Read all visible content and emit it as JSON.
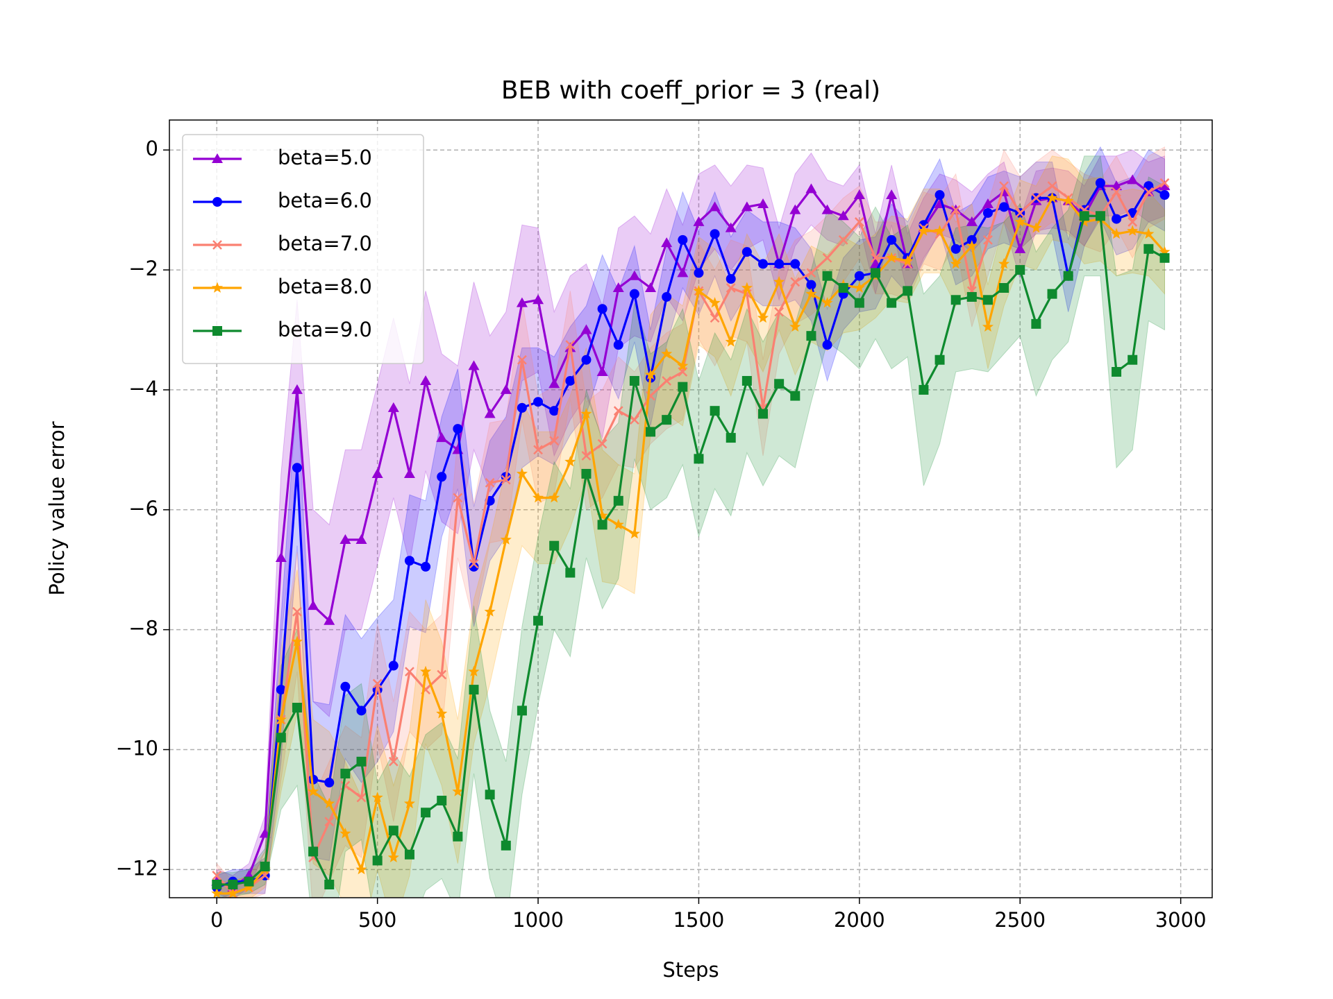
{
  "chart_data": {
    "type": "line",
    "title": "BEB with coeff_prior = 3 (real)",
    "x_label": "Steps",
    "y_label": "Policy value error",
    "x": [
      0,
      50,
      100,
      150,
      200,
      250,
      300,
      350,
      400,
      450,
      500,
      550,
      600,
      650,
      700,
      750,
      800,
      850,
      900,
      950,
      1000,
      1050,
      1100,
      1150,
      1200,
      1250,
      1300,
      1350,
      1400,
      1450,
      1500,
      1550,
      1600,
      1650,
      1700,
      1750,
      1800,
      1850,
      1900,
      1950,
      2000,
      2050,
      2100,
      2150,
      2200,
      2250,
      2300,
      2350,
      2400,
      2450,
      2500,
      2550,
      2600,
      2650,
      2700,
      2750,
      2800,
      2850,
      2900,
      2950
    ],
    "xlim": [
      -147.5,
      3098
    ],
    "ylim": [
      -12.47,
      0.5
    ],
    "xticks": [
      0,
      500,
      1000,
      1500,
      2000,
      2500,
      3000
    ],
    "yticks": [
      {
        "value": -12,
        "label": "−12"
      },
      {
        "value": -10,
        "label": "−10"
      },
      {
        "value": -8,
        "label": "−8"
      },
      {
        "value": -6,
        "label": "−6"
      },
      {
        "value": -4,
        "label": "−4"
      },
      {
        "value": -2,
        "label": "−2"
      },
      0
    ],
    "grid": true,
    "legend": "upper left",
    "series": [
      {
        "name": "beta=5.0",
        "color": "#9400d3",
        "marker": "triangle",
        "values": [
          -12.2,
          -12.3,
          -12.1,
          -11.4,
          -6.8,
          -4.0,
          -7.6,
          -7.85,
          -6.5,
          -6.5,
          -5.4,
          -4.3,
          -5.4,
          -3.85,
          -4.8,
          -5.0,
          -3.6,
          -4.4,
          -4.0,
          -2.55,
          -2.5,
          -3.9,
          -3.3,
          -3.0,
          -3.7,
          -2.3,
          -2.1,
          -2.3,
          -1.55,
          -2.05,
          -1.2,
          -0.95,
          -1.3,
          -0.95,
          -0.9,
          -1.9,
          -1.0,
          -0.65,
          -1.0,
          -1.1,
          -0.75,
          -1.9,
          -0.75,
          -1.9,
          -1.3,
          -0.9,
          -1.0,
          -1.2,
          -0.9,
          -0.7,
          -1.65,
          -0.85,
          -0.8,
          -0.85,
          -1.1,
          -0.6,
          -0.6,
          -0.5,
          -0.7,
          -0.6
        ],
        "errors": [
          0.2,
          0.2,
          0.2,
          0.3,
          1.4,
          1.5,
          1.6,
          1.6,
          1.5,
          1.5,
          1.5,
          1.5,
          1.5,
          1.5,
          1.4,
          1.4,
          1.4,
          1.3,
          1.3,
          1.3,
          1.2,
          1.2,
          1.2,
          1.1,
          1.1,
          1.0,
          1.0,
          0.9,
          0.9,
          0.8,
          0.8,
          0.7,
          0.7,
          0.7,
          0.6,
          0.6,
          0.6,
          0.6,
          0.5,
          0.5,
          0.5,
          0.5,
          0.5,
          0.5,
          0.5,
          0.5,
          0.5,
          0.5,
          0.5,
          0.5,
          0.5,
          0.5,
          0.5,
          0.5,
          0.5,
          0.5,
          0.5,
          0.5,
          0.5,
          0.5
        ]
      },
      {
        "name": "beta=6.0",
        "color": "#0000ff",
        "marker": "circle",
        "values": [
          -12.3,
          -12.2,
          -12.2,
          -12.1,
          -9.0,
          -5.3,
          -10.5,
          -10.55,
          -8.95,
          -9.35,
          -9.0,
          -8.6,
          -6.85,
          -6.95,
          -5.45,
          -4.65,
          -6.95,
          -5.85,
          -5.45,
          -4.3,
          -4.2,
          -4.35,
          -3.85,
          -3.5,
          -2.65,
          -3.25,
          -2.4,
          -3.8,
          -2.45,
          -1.5,
          -2.05,
          -1.4,
          -2.15,
          -1.7,
          -1.9,
          -1.9,
          -1.9,
          -2.25,
          -3.25,
          -2.4,
          -2.1,
          -2.05,
          -1.5,
          -1.8,
          -1.25,
          -0.75,
          -1.65,
          -1.5,
          -1.05,
          -0.95,
          -1.05,
          -0.8,
          -0.8,
          -2.1,
          -1.0,
          -0.55,
          -1.15,
          -1.05,
          -0.6,
          -0.75
        ],
        "errors": [
          0.2,
          0.2,
          0.2,
          0.3,
          1.2,
          1.3,
          1.3,
          1.3,
          1.2,
          1.2,
          1.2,
          1.1,
          1.1,
          1.1,
          1.0,
          1.0,
          1.0,
          1.0,
          1.0,
          1.0,
          0.9,
          0.9,
          0.9,
          0.9,
          0.9,
          0.9,
          0.8,
          0.8,
          0.8,
          0.8,
          0.7,
          0.7,
          0.7,
          0.7,
          0.7,
          0.7,
          0.6,
          0.6,
          0.6,
          0.6,
          0.6,
          0.6,
          0.6,
          0.6,
          0.6,
          0.6,
          0.6,
          0.6,
          0.6,
          0.6,
          0.6,
          0.6,
          0.6,
          0.6,
          0.6,
          0.6,
          0.6,
          0.6,
          0.6,
          0.6
        ]
      },
      {
        "name": "beta=7.0",
        "color": "#fa8072",
        "marker": "x",
        "values": [
          -12.1,
          -12.4,
          -12.3,
          -12.1,
          -9.5,
          -7.7,
          -11.8,
          -11.2,
          -10.6,
          -10.8,
          -8.9,
          -10.2,
          -8.7,
          -9.0,
          -8.75,
          -5.8,
          -6.9,
          -5.55,
          -5.5,
          -3.5,
          -5.0,
          -4.85,
          -3.25,
          -5.1,
          -4.9,
          -4.35,
          -4.5,
          -4.1,
          -3.85,
          -3.7,
          -2.35,
          -2.8,
          -2.3,
          -2.4,
          -4.3,
          -2.7,
          -2.2,
          -2.05,
          -1.8,
          -1.5,
          -1.2,
          -1.8,
          -1.8,
          -1.9,
          -1.3,
          -1.4,
          -1.0,
          -2.35,
          -1.5,
          -0.6,
          -1.05,
          -0.8,
          -0.6,
          -0.8,
          -1.0,
          -1.1,
          -0.7,
          -1.2,
          -0.7,
          -0.55
        ],
        "errors": [
          0.2,
          0.2,
          0.2,
          0.3,
          1.0,
          1.0,
          1.0,
          1.0,
          1.0,
          1.0,
          1.0,
          1.0,
          1.0,
          1.0,
          1.0,
          1.0,
          1.0,
          1.0,
          1.0,
          1.0,
          0.9,
          0.9,
          0.9,
          0.9,
          0.9,
          0.9,
          0.8,
          0.8,
          0.8,
          0.8,
          0.8,
          0.8,
          0.8,
          0.8,
          0.8,
          0.7,
          0.7,
          0.7,
          0.7,
          0.7,
          0.6,
          0.6,
          0.6,
          0.6,
          0.6,
          0.6,
          0.6,
          0.6,
          0.6,
          0.6,
          0.6,
          0.6,
          0.6,
          0.6,
          0.6,
          0.6,
          0.6,
          0.6,
          0.6,
          0.6
        ]
      },
      {
        "name": "beta=8.0",
        "color": "#ffa500",
        "marker": "star",
        "values": [
          -12.4,
          -12.4,
          -12.3,
          -12.0,
          -9.5,
          -8.2,
          -10.7,
          -10.9,
          -11.4,
          -12.0,
          -10.8,
          -11.8,
          -10.9,
          -8.7,
          -9.4,
          -10.7,
          -8.7,
          -7.7,
          -6.5,
          -5.4,
          -5.8,
          -5.8,
          -5.2,
          -4.4,
          -6.1,
          -6.25,
          -6.4,
          -3.75,
          -3.4,
          -3.6,
          -2.35,
          -2.55,
          -3.2,
          -2.3,
          -2.8,
          -2.2,
          -2.95,
          -2.4,
          -2.55,
          -2.25,
          -2.3,
          -2.1,
          -1.8,
          -1.85,
          -1.35,
          -1.35,
          -1.9,
          -1.6,
          -2.95,
          -1.9,
          -1.2,
          -1.3,
          -0.8,
          -0.85,
          -1.2,
          -1.15,
          -1.4,
          -1.35,
          -1.4,
          -1.7
        ],
        "errors": [
          0.2,
          0.2,
          0.2,
          0.3,
          1.2,
          1.2,
          1.2,
          1.2,
          1.2,
          1.2,
          1.2,
          1.2,
          1.2,
          1.2,
          1.2,
          1.2,
          1.2,
          1.2,
          1.2,
          1.2,
          1.1,
          1.1,
          1.1,
          1.1,
          1.1,
          1.0,
          1.0,
          1.0,
          1.0,
          1.0,
          0.9,
          0.9,
          0.9,
          0.9,
          0.9,
          0.8,
          0.8,
          0.8,
          0.8,
          0.8,
          0.7,
          0.7,
          0.7,
          0.7,
          0.7,
          0.7,
          0.7,
          0.7,
          0.7,
          0.7,
          0.7,
          0.7,
          0.7,
          0.7,
          0.7,
          0.7,
          0.7,
          0.7,
          0.7,
          0.7
        ]
      },
      {
        "name": "beta=9.0",
        "color": "#0e8a2e",
        "marker": "square",
        "values": [
          -12.25,
          -12.25,
          -12.2,
          -11.95,
          -9.8,
          -9.3,
          -11.7,
          -12.25,
          -10.4,
          -10.2,
          -11.85,
          -11.35,
          -11.75,
          -11.05,
          -10.85,
          -11.45,
          -9.0,
          -10.75,
          -11.6,
          -9.35,
          -7.85,
          -6.6,
          -7.05,
          -5.4,
          -6.25,
          -5.85,
          -3.85,
          -4.7,
          -4.5,
          -3.95,
          -5.15,
          -4.35,
          -4.8,
          -3.85,
          -4.4,
          -3.9,
          -4.1,
          -3.1,
          -2.1,
          -2.3,
          -2.55,
          -2.05,
          -2.55,
          -2.35,
          -4.0,
          -3.5,
          -2.5,
          -2.45,
          -2.5,
          -2.3,
          -2.0,
          -2.9,
          -2.4,
          -2.1,
          -1.1,
          -1.1,
          -3.7,
          -3.5,
          -1.65,
          -1.8
        ],
        "errors": [
          0.2,
          0.2,
          0.2,
          0.3,
          1.2,
          1.3,
          1.3,
          1.3,
          1.3,
          1.3,
          1.3,
          1.3,
          1.3,
          1.3,
          1.3,
          1.3,
          1.4,
          1.4,
          1.4,
          1.4,
          1.4,
          1.4,
          1.4,
          1.4,
          1.4,
          1.3,
          1.3,
          1.3,
          1.3,
          1.3,
          1.3,
          1.3,
          1.3,
          1.2,
          1.2,
          1.2,
          1.2,
          1.1,
          1.1,
          1.1,
          1.1,
          1.1,
          1.1,
          1.1,
          1.6,
          1.4,
          1.2,
          1.2,
          1.2,
          1.1,
          1.1,
          1.2,
          1.1,
          1.1,
          1.0,
          1.0,
          1.6,
          1.5,
          1.2,
          1.2
        ]
      }
    ]
  }
}
